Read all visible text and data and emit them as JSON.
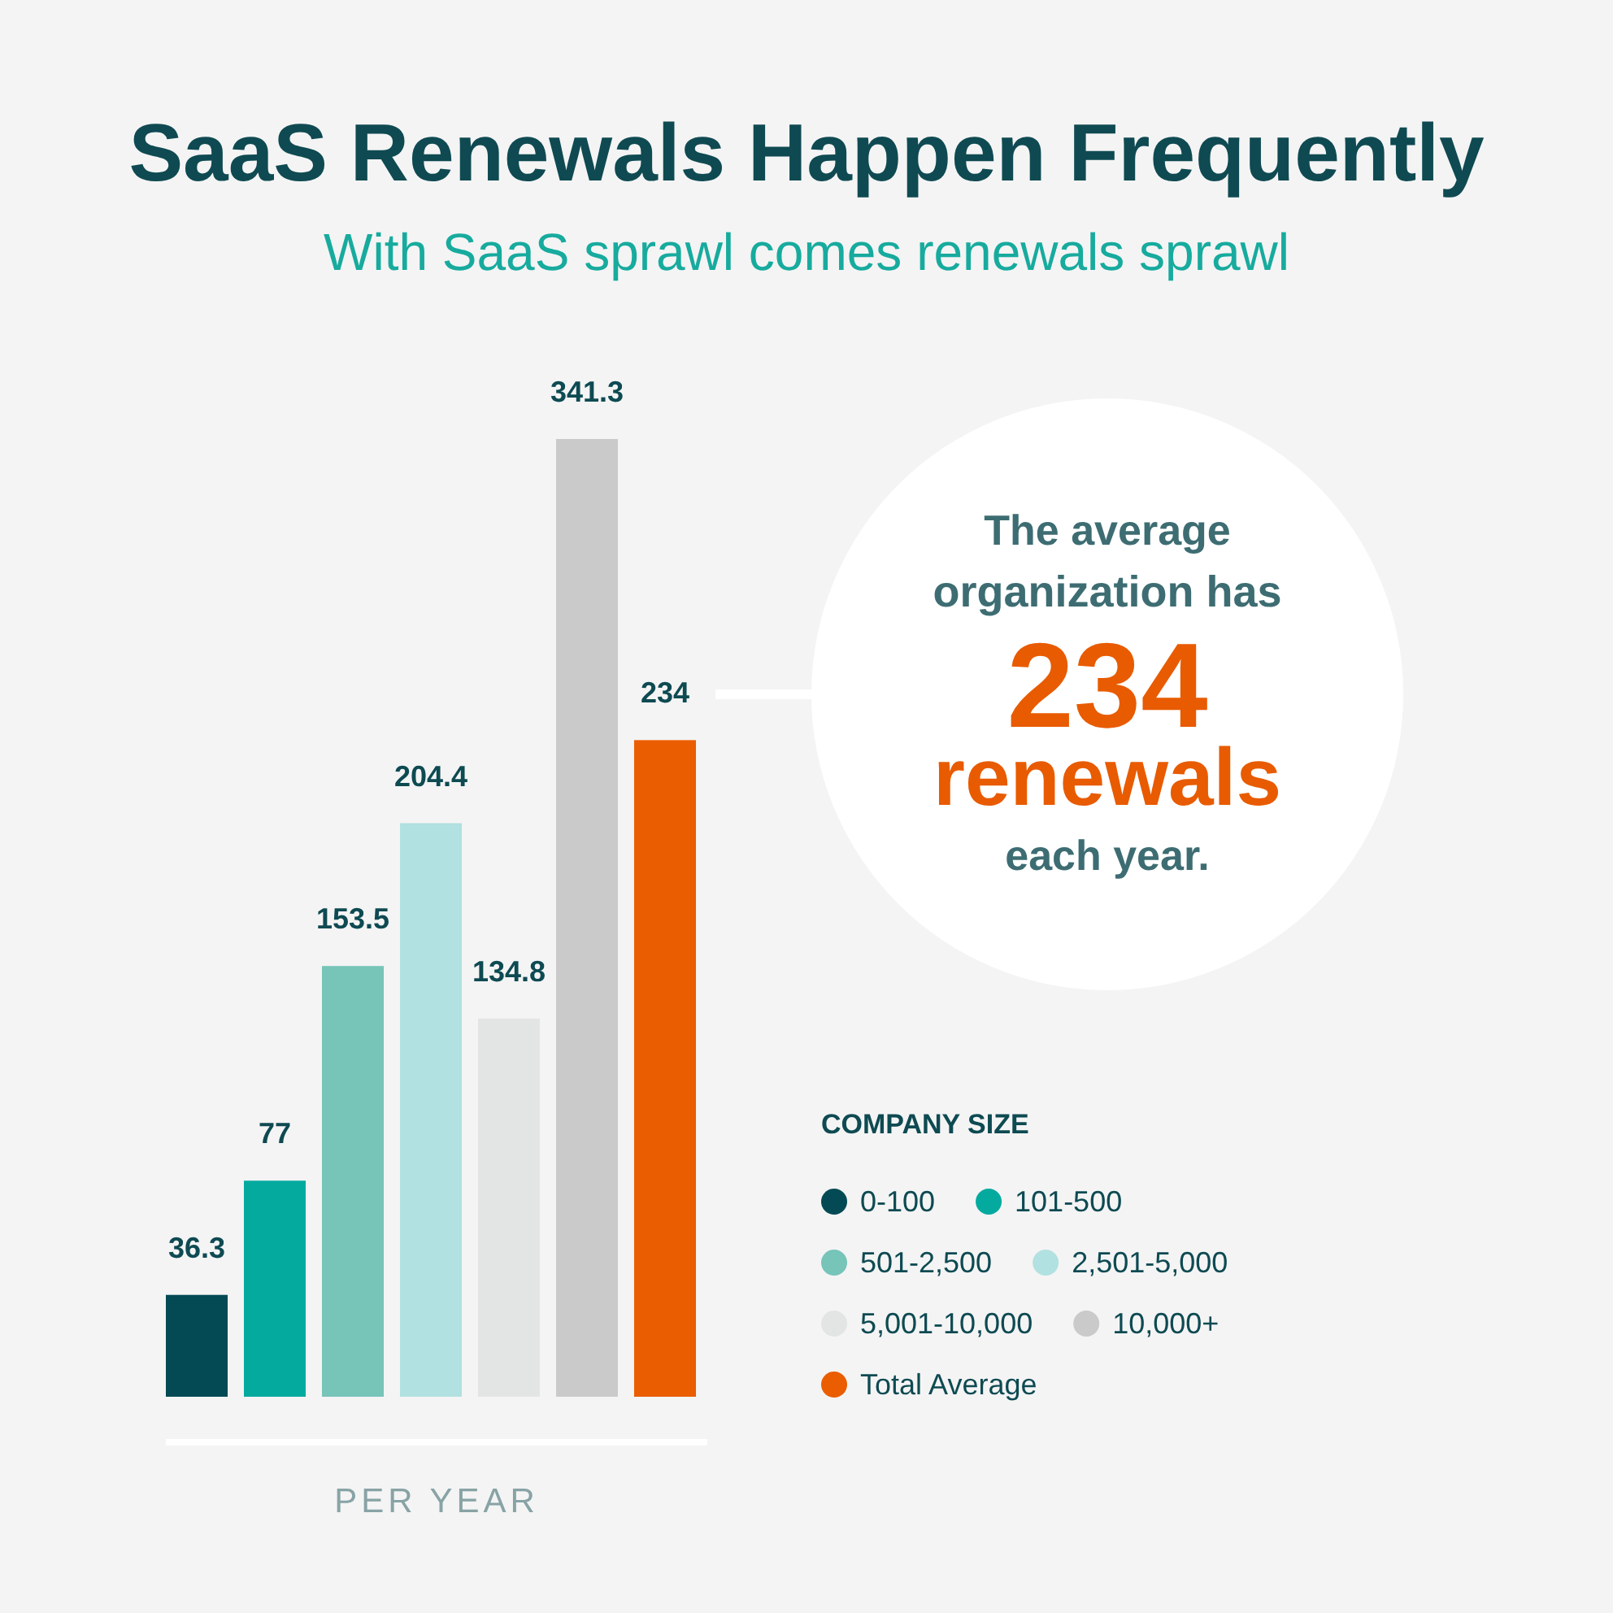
{
  "chart_data": {
    "type": "bar",
    "title": "SaaS Renewals Happen Frequently",
    "subtitle": "With SaaS sprawl comes renewals sprawl",
    "xlabel": "PER YEAR",
    "legend_title": "COMPANY SIZE",
    "legend": "bottom right",
    "data_labels": true,
    "categories": [
      null
    ],
    "series": [
      {
        "name": "0-100",
        "color": "#034a54",
        "values": [
          36.3
        ]
      },
      {
        "name": "101-500",
        "color": "#05aa9f",
        "values": [
          77
        ]
      },
      {
        "name": "501-2,500",
        "color": "#77c4b9",
        "values": [
          153.5
        ]
      },
      {
        "name": "2,501-5,000",
        "color": "#b1e1e0",
        "values": [
          204.4
        ]
      },
      {
        "name": "5,001-10,000",
        "color": "#e3e5e4",
        "values": [
          134.8
        ]
      },
      {
        "name": "10,000+",
        "color": "#cacaca",
        "values": [
          341.3
        ]
      },
      {
        "name": "Total Average",
        "color": "#ea5d00",
        "values": [
          234
        ]
      }
    ],
    "annotations": [
      "The average\norganization has\n234\nrenewals\neach year."
    ]
  }
}
